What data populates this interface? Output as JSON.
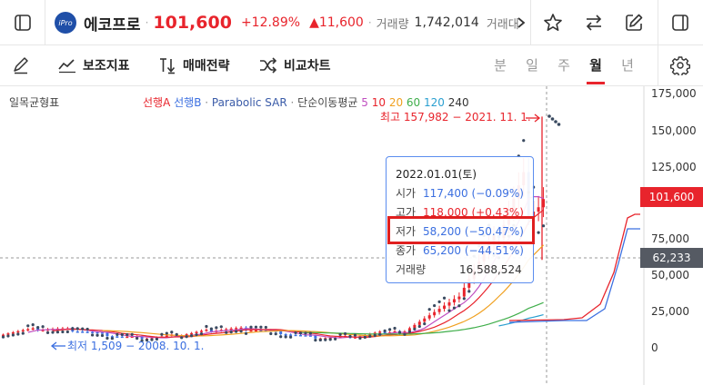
{
  "header": {
    "logo_text": "iPro",
    "stock_name": "에코프로",
    "price": "101,600",
    "change_pct": "+12.89%",
    "change_abs": "▲11,600",
    "volume_label": "거래량",
    "volume": "1,742,014",
    "next_label": "거래대"
  },
  "toolbar": {
    "indicators_label": "보조지표",
    "strategy_label": "매매전략",
    "compare_label": "비교차트",
    "periods": [
      "분",
      "일",
      "주",
      "월",
      "년"
    ],
    "active_period": "월"
  },
  "chart": {
    "legend_main": "일목균형표",
    "legend_ichimoku_a": "선행A",
    "legend_ichimoku_b": "선행B",
    "legend_sar": "Parabolic SAR",
    "legend_ma": "단순이동평균",
    "ma_periods": [
      "5",
      "10",
      "20",
      "60",
      "120",
      "240"
    ],
    "high_annotation": "최고 157,982 − 2021. 11. 1.",
    "low_annotation": "최저 1,509 − 2008. 10. 1.",
    "current_price_badge": "101,600",
    "crosshair_badge": "62,233",
    "y_ticks": [
      "175,000",
      "150,000",
      "125,000",
      "100,000",
      "75,000",
      "50,000",
      "25,000",
      "0"
    ]
  },
  "tooltip": {
    "date": "2022.01.01(토)",
    "open_label": "시가",
    "open_value": "117,400 (−0.09%)",
    "high_label": "고가",
    "high_value": "118,000 (+0.43%)",
    "low_label": "저가",
    "low_value": "58,200 (−50.47%)",
    "close_label": "종가",
    "close_value": "65,200 (−44.51%)",
    "volume_label": "거래량",
    "volume_value": "16,588,524"
  },
  "colors": {
    "up": "#e8242c",
    "down": "#3b6fe0",
    "accent": "#e8242c",
    "highlight_box": "#e01f1f"
  }
}
